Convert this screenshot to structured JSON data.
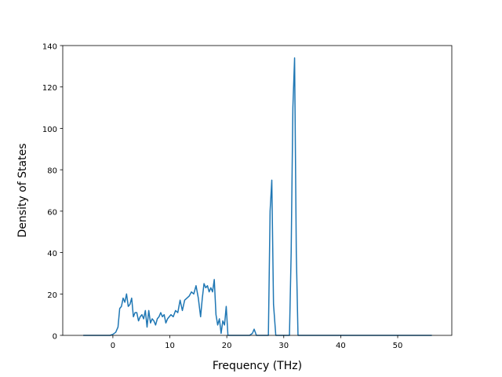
{
  "chart_data": {
    "type": "line",
    "title": "",
    "xlabel": "Frequency (THz)",
    "ylabel": "Density of States",
    "xlim": [
      -8.8,
      59.5
    ],
    "ylim": [
      0,
      140
    ],
    "x_ticks": [
      0,
      10,
      20,
      30,
      40,
      50
    ],
    "y_ticks": [
      0,
      20,
      40,
      60,
      80,
      100,
      120,
      140
    ],
    "x_tick_labels": [
      "0",
      "10",
      "20",
      "30",
      "40",
      "50"
    ],
    "y_tick_labels": [
      "0",
      "20",
      "40",
      "60",
      "80",
      "100",
      "120",
      "140"
    ],
    "grid": false,
    "legend": "none",
    "line_color": "#1f77b4",
    "series": [
      {
        "x": [
          -5.2,
          -0.5,
          0,
          0.5,
          0.9,
          1.2,
          1.5,
          1.8,
          2.1,
          2.4,
          2.7,
          3.0,
          3.3,
          3.6,
          3.9,
          4.2,
          4.5,
          4.8,
          5.1,
          5.4,
          5.7,
          6.0,
          6.3,
          6.6,
          6.9,
          7.2,
          7.5,
          7.8,
          8.1,
          8.4,
          8.7,
          9.0,
          9.3,
          9.6,
          9.9,
          10.2,
          10.6,
          11.0,
          11.4,
          11.8,
          12.2,
          12.6,
          13.0,
          13.4,
          13.8,
          14.2,
          14.6,
          15.0,
          15.4,
          15.7,
          16.0,
          16.3,
          16.6,
          16.9,
          17.2,
          17.5,
          17.8,
          18.1,
          18.4,
          18.7,
          19.0,
          19.3,
          19.6,
          19.9,
          20.2,
          24.0,
          24.5,
          24.8,
          25.2,
          27.3,
          27.6,
          27.9,
          28.2,
          28.6,
          29.0,
          31.0,
          31.3,
          31.6,
          31.9,
          32.2,
          32.5,
          56.0
        ],
        "y": [
          0,
          0,
          0.5,
          1.5,
          4,
          13,
          14,
          18,
          16,
          20,
          14,
          15,
          18,
          9,
          11,
          11,
          7,
          9,
          10,
          8,
          12,
          4,
          12,
          6,
          8,
          7,
          5,
          8,
          9,
          11,
          9,
          10,
          6,
          8,
          9,
          10,
          9,
          12,
          11,
          17,
          12,
          17,
          18,
          19,
          21,
          20,
          24,
          18,
          9,
          18,
          25,
          23,
          24,
          21,
          23,
          21,
          27,
          10,
          5,
          8,
          1,
          7,
          5,
          14,
          0,
          0,
          1,
          3,
          0,
          0,
          60,
          75,
          15,
          0,
          0,
          0,
          40,
          110,
          134,
          40,
          0,
          0
        ]
      }
    ]
  }
}
